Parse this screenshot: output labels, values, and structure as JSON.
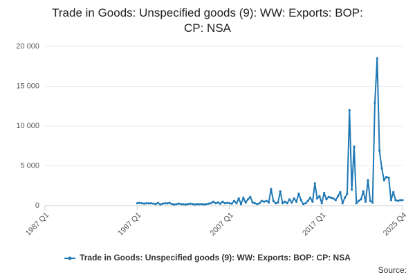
{
  "chart_data": {
    "type": "line",
    "title": "Trade in Goods: Unspecified goods (9): WW: Exports: BOP: CP: NSA",
    "categories": [
      "1987 Q1",
      null,
      null,
      null,
      null,
      null,
      null,
      null,
      null,
      null,
      null,
      null,
      null,
      null,
      null,
      null,
      null,
      null,
      null,
      null,
      null,
      null,
      null,
      null,
      null,
      null,
      null,
      null,
      null,
      null,
      null,
      null,
      null,
      null,
      null,
      null,
      null,
      null,
      null,
      null,
      "1997 Q1",
      null,
      null,
      null,
      null,
      null,
      null,
      null,
      null,
      null,
      null,
      null,
      null,
      null,
      null,
      null,
      null,
      null,
      null,
      null,
      null,
      null,
      null,
      null,
      null,
      null,
      null,
      null,
      null,
      null,
      null,
      null,
      null,
      null,
      null,
      null,
      null,
      null,
      null,
      null,
      "2007 Q1",
      null,
      null,
      null,
      null,
      null,
      null,
      null,
      null,
      null,
      null,
      null,
      null,
      null,
      null,
      null,
      null,
      null,
      null,
      null,
      null,
      null,
      null,
      null,
      null,
      null,
      null,
      null,
      null,
      null,
      null,
      null,
      null,
      null,
      null,
      null,
      null,
      null,
      null,
      null,
      "2017 Q1",
      null,
      null,
      null,
      null,
      null,
      null,
      null,
      null,
      null,
      null,
      null,
      null,
      null,
      null,
      null,
      null,
      null,
      null,
      null,
      null,
      null,
      null,
      null,
      null,
      null,
      null,
      null,
      null,
      null,
      null,
      null,
      null,
      null,
      null,
      "2025 Q4"
    ],
    "series": [
      {
        "name": "Trade in Goods: Unspecified goods (9): WW: Exports: BOP: CP: NSA",
        "color": "#1f78b4",
        "values": [
          null,
          null,
          null,
          null,
          null,
          null,
          null,
          null,
          null,
          null,
          null,
          null,
          null,
          null,
          null,
          null,
          null,
          null,
          null,
          null,
          null,
          null,
          null,
          null,
          null,
          null,
          null,
          null,
          null,
          null,
          null,
          null,
          null,
          null,
          null,
          null,
          null,
          null,
          null,
          null,
          300,
          350,
          300,
          250,
          300,
          280,
          300,
          250,
          200,
          350,
          150,
          250,
          300,
          280,
          350,
          200,
          150,
          200,
          250,
          200,
          180,
          150,
          200,
          250,
          200,
          150,
          200,
          180,
          200,
          150,
          200,
          250,
          300,
          500,
          300,
          400,
          250,
          500,
          300,
          350,
          300,
          250,
          600,
          300,
          900,
          200,
          1000,
          400,
          800,
          1100,
          400,
          300,
          200,
          300,
          600,
          500,
          600,
          400,
          2100,
          600,
          300,
          400,
          1800,
          300,
          500,
          300,
          800,
          400,
          900,
          500,
          1500,
          700,
          200,
          300,
          600,
          1000,
          500,
          2800,
          900,
          1200,
          300,
          1600,
          800,
          1100,
          1000,
          900,
          700,
          1200,
          1700,
          300,
          1000,
          1500,
          12000,
          2000,
          7400,
          300,
          600,
          800,
          1800,
          500,
          3200,
          600,
          400,
          12900,
          18500,
          6900,
          4700,
          3200,
          3600,
          3500,
          700,
          1700,
          700,
          600,
          700,
          700
        ]
      }
    ],
    "ylim": [
      0,
      20000
    ],
    "yticks": [
      0,
      {
        "value": 5000,
        "label": "5 000"
      },
      {
        "value": 10000,
        "label": "10 000"
      },
      {
        "value": 15000,
        "label": "15 000"
      },
      {
        "value": 20000,
        "label": "20 000"
      }
    ],
    "grid": true,
    "legend": "bottom",
    "source": "Source:"
  }
}
